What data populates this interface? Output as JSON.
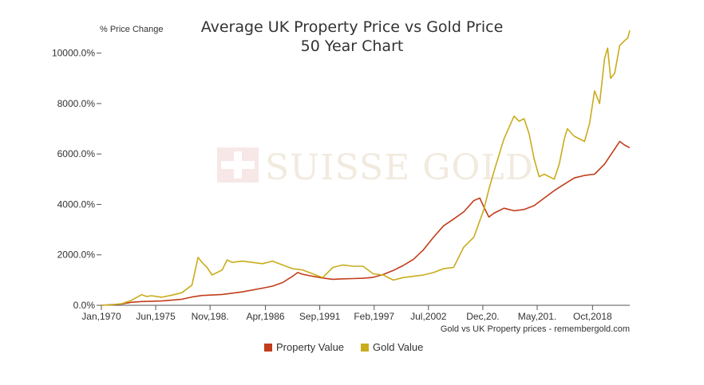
{
  "chart_data": {
    "type": "line",
    "title_line1": "Average UK Property Price vs Gold Price",
    "title_line2": "50 Year Chart",
    "ylabel": "% Price Change",
    "xlabel": "",
    "source": "Gold vs UK Property prices - remembergold.com",
    "watermark": "SUISSE GOLD",
    "x_range": [
      1970.0,
      2022.5
    ],
    "ylim": [
      0,
      11000
    ],
    "y_ticks": [
      0,
      2000,
      4000,
      6000,
      8000,
      10000
    ],
    "y_tick_labels": [
      "0.0%",
      "2000.0%",
      "4000.0%",
      "6000.0%",
      "8000.0%",
      "10000.0%"
    ],
    "x_ticks": [
      {
        "x": 1970.0,
        "label": "Jan,1970"
      },
      {
        "x": 1975.4,
        "label": "Jun,1975"
      },
      {
        "x": 1980.8,
        "label": "Nov,198."
      },
      {
        "x": 1986.3,
        "label": "Apr,1986"
      },
      {
        "x": 1991.7,
        "label": "Sep,1991"
      },
      {
        "x": 1997.1,
        "label": "Feb,1997"
      },
      {
        "x": 2002.5,
        "label": "Jul,2002"
      },
      {
        "x": 2007.9,
        "label": "Dec,20."
      },
      {
        "x": 2013.3,
        "label": "May,201."
      },
      {
        "x": 2018.8,
        "label": "Oct,2018"
      }
    ],
    "grid": false,
    "legend_position": "bottom-center",
    "series": [
      {
        "name": "Property Value",
        "color": "#c23d1a",
        "x": [
          1970,
          1972,
          1973,
          1974,
          1976,
          1978,
          1979,
          1980,
          1982,
          1984,
          1986,
          1987,
          1988,
          1989,
          1989.5,
          1990,
          1991,
          1992,
          1993,
          1994,
          1995,
          1996,
          1997,
          1998,
          1999,
          2000,
          2001,
          2002,
          2003,
          2004,
          2005,
          2006,
          2007,
          2007.6,
          2008,
          2008.5,
          2009,
          2009.5,
          2010,
          2011,
          2012,
          2013,
          2014,
          2015,
          2016,
          2017,
          2018,
          2019,
          2020,
          2020.5,
          2021,
          2021.5,
          2022,
          2022.5
        ],
        "y": [
          0,
          50,
          120,
          150,
          170,
          240,
          330,
          390,
          430,
          530,
          680,
          760,
          900,
          1150,
          1300,
          1230,
          1150,
          1080,
          1030,
          1050,
          1060,
          1070,
          1110,
          1220,
          1380,
          1580,
          1820,
          2200,
          2700,
          3150,
          3420,
          3700,
          4150,
          4250,
          3900,
          3500,
          3650,
          3750,
          3850,
          3750,
          3800,
          3950,
          4250,
          4550,
          4800,
          5050,
          5150,
          5200,
          5600,
          5900,
          6200,
          6500,
          6350,
          6250
        ]
      },
      {
        "name": "Gold Value",
        "color": "#c9ac1c",
        "x": [
          1970,
          1971,
          1972,
          1973,
          1974,
          1974.5,
          1975,
          1976,
          1977,
          1978,
          1979,
          1979.6,
          1980,
          1980.5,
          1981,
          1982,
          1982.5,
          1983,
          1984,
          1985,
          1986,
          1987,
          1988,
          1989,
          1990,
          1991,
          1992,
          1993,
          1994,
          1995,
          1996,
          1997,
          1998,
          1999,
          2000,
          2001,
          2002,
          2003,
          2004,
          2005,
          2006,
          2007,
          2008,
          2008.5,
          2009,
          2010,
          2011,
          2011.5,
          2012,
          2012.5,
          2013,
          2013.5,
          2014,
          2015,
          2015.5,
          2016,
          2016.3,
          2017,
          2018,
          2018.5,
          2019,
          2019.5,
          2020,
          2020.3,
          2020.6,
          2021,
          2021.5,
          2022,
          2022.3,
          2022.5
        ],
        "y": [
          0,
          20,
          60,
          200,
          420,
          350,
          380,
          320,
          400,
          500,
          800,
          1900,
          1700,
          1500,
          1200,
          1400,
          1800,
          1700,
          1750,
          1700,
          1650,
          1750,
          1600,
          1450,
          1400,
          1250,
          1100,
          1500,
          1600,
          1550,
          1550,
          1250,
          1200,
          1000,
          1100,
          1150,
          1200,
          1300,
          1450,
          1500,
          2300,
          2700,
          3800,
          4600,
          5300,
          6600,
          7500,
          7300,
          7400,
          6800,
          5800,
          5100,
          5200,
          5000,
          5600,
          6600,
          7000,
          6700,
          6500,
          7200,
          8500,
          8000,
          9800,
          10200,
          9000,
          9200,
          10300,
          10500,
          10600,
          10900
        ]
      }
    ]
  }
}
